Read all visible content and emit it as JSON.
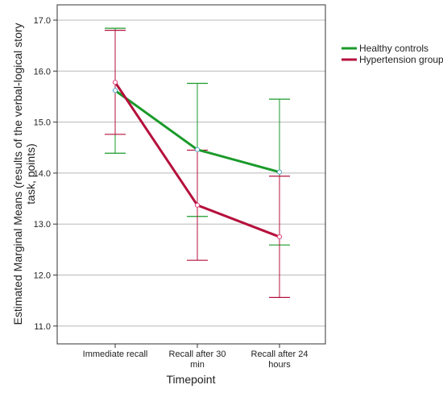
{
  "chart_data": {
    "type": "line",
    "xlabel": "Timepoint",
    "ylabel": "Estimated Marginal Means (results of the verbal-logical story task, points)",
    "ylim": [
      10.65,
      17.3
    ],
    "yticks": [
      "11.0",
      "12.0",
      "13.0",
      "14.0",
      "15.0",
      "16.0",
      "17.0"
    ],
    "categories": [
      "Immediate recall",
      "Recall after 30 min",
      "Recall after 24 hours"
    ],
    "grid": true,
    "error_bars": true,
    "legend_position": "top-right",
    "series": [
      {
        "name": "Healthy controls",
        "color": "#1a9a2a",
        "values": [
          15.62,
          14.46,
          14.02
        ],
        "err_low": [
          14.39,
          13.15,
          12.59
        ],
        "err_high": [
          16.84,
          15.76,
          15.45
        ]
      },
      {
        "name": "Hypertension group",
        "color": "#b5103c",
        "values": [
          15.78,
          13.37,
          12.75
        ],
        "err_low": [
          14.76,
          12.29,
          11.56
        ],
        "err_high": [
          16.8,
          14.45,
          13.94
        ]
      }
    ]
  }
}
